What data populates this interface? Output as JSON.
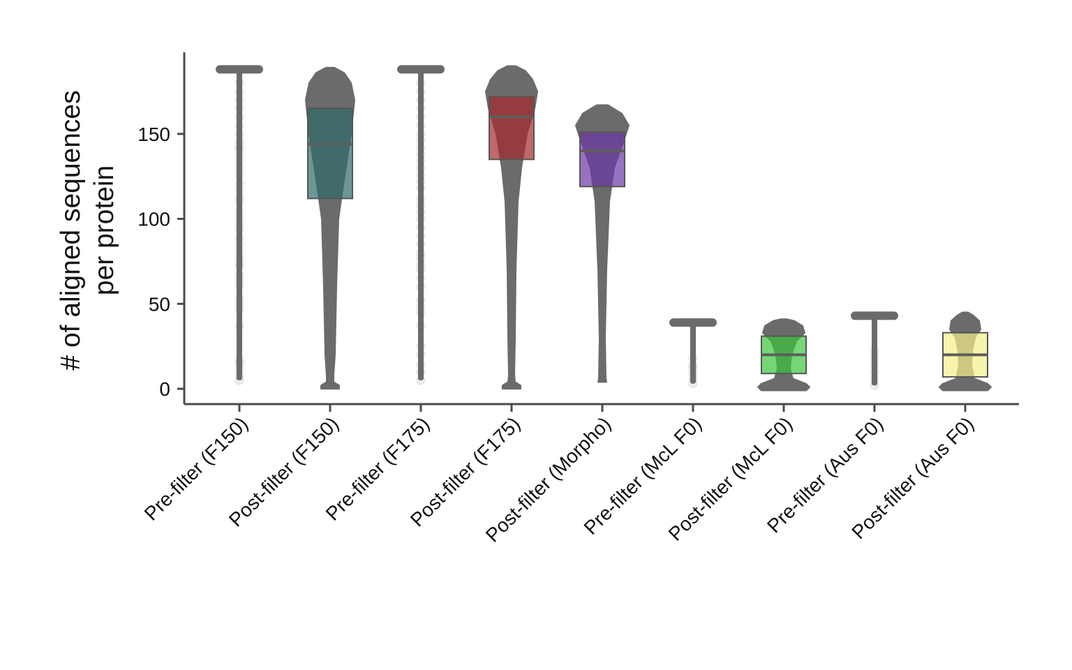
{
  "chart_data": {
    "type": "violin+box",
    "ylabel": "# of aligned sequences",
    "ylabel_line2": "per protein",
    "ylim": [
      -9,
      198
    ],
    "yticks": [
      0,
      50,
      100,
      150
    ],
    "grid": false,
    "categories": [
      "Pre-filter (F150)",
      "Post-filter (F150)",
      "Pre-filter (F175)",
      "Post-filter (F175)",
      "Post-filter (Morpho)",
      "Pre-filter (McL F0)",
      "Post-filter (McL F0)",
      "Pre-filter (Aus F0)",
      "Post-filter (Aus F0)"
    ],
    "series": [
      {
        "kind": "pre",
        "min": 5,
        "max": 188,
        "mode": 188,
        "outliers": [
          5,
          8,
          12,
          15,
          17,
          37,
          47,
          50,
          53,
          61,
          64,
          67,
          72,
          74,
          77,
          81,
          85,
          89,
          94,
          97,
          101,
          105,
          110,
          113,
          117,
          121,
          126,
          130,
          134,
          138,
          141,
          143,
          146,
          150,
          155,
          160,
          165,
          170,
          175,
          180
        ]
      },
      {
        "kind": "post",
        "box": {
          "q1": 112,
          "median": 144,
          "q3": 165
        },
        "box_color": "#2e6b6a",
        "violin": [
          [
            0,
            13
          ],
          [
            2,
            13
          ],
          [
            4,
            5
          ],
          [
            8,
            5
          ],
          [
            20,
            7
          ],
          [
            60,
            9
          ],
          [
            100,
            12
          ],
          [
            120,
            19
          ],
          [
            150,
            30
          ],
          [
            170,
            35
          ],
          [
            180,
            30
          ],
          [
            186,
            20
          ],
          [
            189,
            6
          ]
        ]
      },
      {
        "kind": "pre",
        "min": 5,
        "max": 188,
        "mode": 188,
        "outliers": [
          5,
          10,
          14,
          20,
          25,
          37,
          45,
          48,
          52,
          60,
          65,
          70,
          73,
          77,
          80,
          85,
          90,
          95,
          100,
          104,
          108,
          112,
          118,
          122,
          126,
          130,
          134,
          138,
          142,
          146,
          150,
          155,
          160,
          165,
          170,
          175,
          180
        ]
      },
      {
        "kind": "post",
        "box": {
          "q1": 135,
          "median": 160,
          "q3": 172
        },
        "box_color": "#a5282c",
        "violin": [
          [
            0,
            13
          ],
          [
            2,
            13
          ],
          [
            4,
            5
          ],
          [
            8,
            4
          ],
          [
            30,
            5
          ],
          [
            70,
            6
          ],
          [
            110,
            9
          ],
          [
            130,
            14
          ],
          [
            150,
            22
          ],
          [
            165,
            33
          ],
          [
            175,
            37
          ],
          [
            182,
            30
          ],
          [
            187,
            20
          ],
          [
            190,
            6
          ]
        ]
      },
      {
        "kind": "post",
        "box": {
          "q1": 119,
          "median": 140,
          "q3": 151
        },
        "box_color": "#6b36a6",
        "violin": [
          [
            4,
            6
          ],
          [
            6,
            5
          ],
          [
            30,
            4
          ],
          [
            70,
            6
          ],
          [
            110,
            10
          ],
          [
            130,
            17
          ],
          [
            145,
            30
          ],
          [
            155,
            38
          ],
          [
            162,
            28
          ],
          [
            167,
            8
          ]
        ]
      },
      {
        "kind": "pre",
        "min": 3,
        "max": 39,
        "mode": 39,
        "outliers": [
          3,
          6,
          9,
          12,
          14,
          18
        ]
      },
      {
        "kind": "post",
        "box": {
          "q1": 9,
          "median": 20,
          "q3": 31
        },
        "box_color": "#3cc43c",
        "violin": [
          [
            -1,
            32
          ],
          [
            1,
            37
          ],
          [
            3,
            32
          ],
          [
            6,
            13
          ],
          [
            12,
            9
          ],
          [
            20,
            11
          ],
          [
            28,
            18
          ],
          [
            33,
            30
          ],
          [
            37,
            27
          ],
          [
            40,
            15
          ],
          [
            41,
            4
          ]
        ]
      },
      {
        "kind": "pre",
        "min": 2,
        "max": 43,
        "mode": 43,
        "outliers": [
          2,
          6,
          10,
          14,
          18,
          22
        ]
      },
      {
        "kind": "post",
        "box": {
          "q1": 7,
          "median": 20,
          "q3": 33
        },
        "box_color": "#f7f08a",
        "violin": [
          [
            -1,
            32
          ],
          [
            1,
            37
          ],
          [
            3,
            32
          ],
          [
            6,
            13
          ],
          [
            14,
            9
          ],
          [
            22,
            10
          ],
          [
            30,
            14
          ],
          [
            35,
            22
          ],
          [
            40,
            20
          ],
          [
            43,
            12
          ],
          [
            45,
            4
          ]
        ]
      }
    ]
  }
}
